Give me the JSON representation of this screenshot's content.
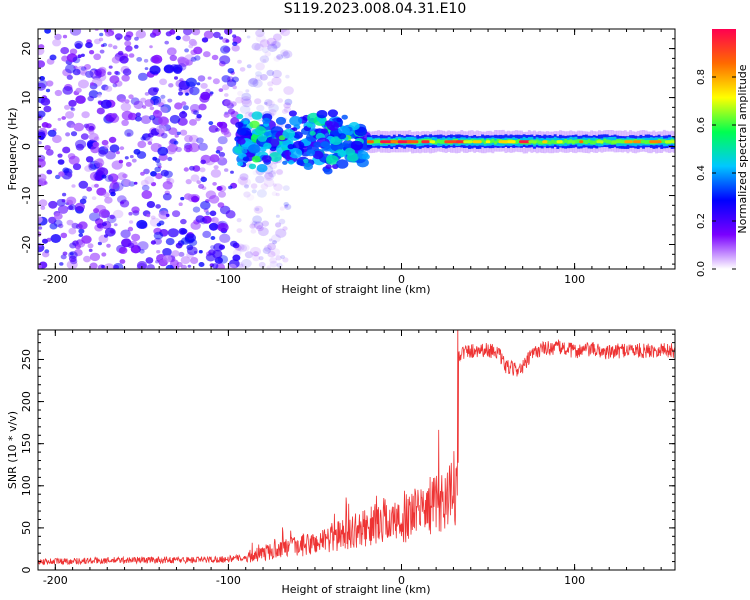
{
  "title": "S119.2023.008.04.31.E10",
  "chart_data": [
    {
      "type": "heatmap",
      "name": "spectrogram",
      "xlabel": "Height of straight line (km)",
      "ylabel": "Frequency (Hz)",
      "xlim": [
        -210,
        158
      ],
      "ylim": [
        -25,
        24
      ],
      "xticks": [
        -200,
        -100,
        0,
        100
      ],
      "yticks": [
        -20,
        -10,
        0,
        10,
        20
      ],
      "colorbar": {
        "label": "Normalized spectral amplitude",
        "range": [
          0,
          1
        ],
        "ticks": [
          0.0,
          0.2,
          0.4,
          0.6,
          0.8
        ],
        "colors": [
          "#ffffff",
          "#7a00ff",
          "#0000ff",
          "#00c8ff",
          "#00ff50",
          "#ffff00",
          "#ff6a00",
          "#ff0050"
        ]
      },
      "features": [
        {
          "x_range": [
            -210,
            -95
          ],
          "freq_range": [
            -25,
            24
          ],
          "amplitude": [
            0.05,
            0.3
          ],
          "description": "scattered low-amplitude noise"
        },
        {
          "x_range": [
            -95,
            -20
          ],
          "freq_range": [
            -5,
            8
          ],
          "amplitude": [
            0.2,
            0.5
          ],
          "description": "noisy cluster near 0 Hz"
        },
        {
          "x_range": [
            -20,
            158
          ],
          "freq_center": 1.0,
          "amplitude": [
            0.6,
            1.0
          ],
          "description": "narrow band near 1 Hz"
        }
      ]
    },
    {
      "type": "line",
      "name": "snr",
      "xlabel": "Height of straight line (km)",
      "ylabel": "SNR (10 * v/v)",
      "xlim": [
        -210,
        158
      ],
      "ylim": [
        0,
        285
      ],
      "xticks": [
        -200,
        -100,
        0,
        100
      ],
      "yticks": [
        0,
        50,
        100,
        150,
        200,
        250
      ],
      "color": "#ee3333",
      "series": [
        {
          "name": "SNR",
          "x": [
            -210,
            -180,
            -150,
            -120,
            -100,
            -90,
            -80,
            -70,
            -60,
            -50,
            -40,
            -30,
            -20,
            -10,
            0,
            10,
            20,
            30,
            32,
            33,
            35,
            45,
            55,
            60,
            65,
            70,
            75,
            80,
            90,
            100,
            110,
            120,
            130,
            140,
            150,
            158
          ],
          "y": [
            10,
            11,
            12,
            12,
            13,
            15,
            20,
            25,
            28,
            32,
            38,
            45,
            50,
            60,
            55,
            70,
            80,
            90,
            95,
            255,
            258,
            262,
            260,
            242,
            238,
            240,
            255,
            262,
            265,
            260,
            262,
            258,
            262,
            260,
            262,
            260
          ]
        }
      ]
    }
  ]
}
